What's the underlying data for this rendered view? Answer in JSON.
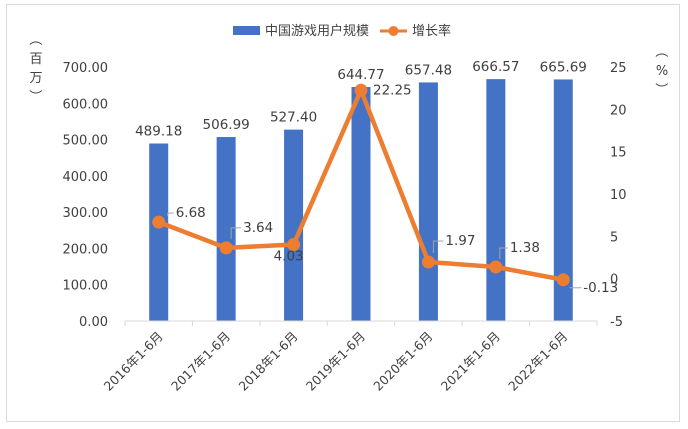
{
  "chart_data": {
    "type": "bar+line",
    "categories": [
      "2016年1-6月",
      "2017年1-6月",
      "2018年1-6月",
      "2019年1-6月",
      "2020年1-6月",
      "2021年1-6月",
      "2022年1-6月"
    ],
    "series": [
      {
        "name": "中国游戏用户规模",
        "type": "bar",
        "axis": "left",
        "color": "#4472C4",
        "values": [
          489.18,
          506.99,
          527.4,
          644.77,
          657.48,
          666.57,
          665.69
        ],
        "labels": [
          "489.18",
          "506.99",
          "527.40",
          "644.77",
          "657.48",
          "666.57",
          "665.69"
        ]
      },
      {
        "name": "增长率",
        "type": "line",
        "axis": "right",
        "color": "#ED7D31",
        "values": [
          6.68,
          3.64,
          4.03,
          22.25,
          1.97,
          1.38,
          -0.13
        ],
        "labels": [
          "6.68",
          "3.64",
          "4.03",
          "22.25",
          "1.97",
          "1.38",
          "-0.13"
        ]
      }
    ],
    "left_axis": {
      "label": "（百万）",
      "ylim": [
        0,
        700
      ],
      "ticks": [
        "0.00",
        "100.00",
        "200.00",
        "300.00",
        "400.00",
        "500.00",
        "600.00",
        "700.00"
      ]
    },
    "right_axis": {
      "label": "（%）",
      "ylim": [
        -5,
        25
      ],
      "ticks": [
        "-5",
        "0",
        "5",
        "10",
        "15",
        "20",
        "25"
      ]
    },
    "legend_position": "top",
    "grid": false
  }
}
